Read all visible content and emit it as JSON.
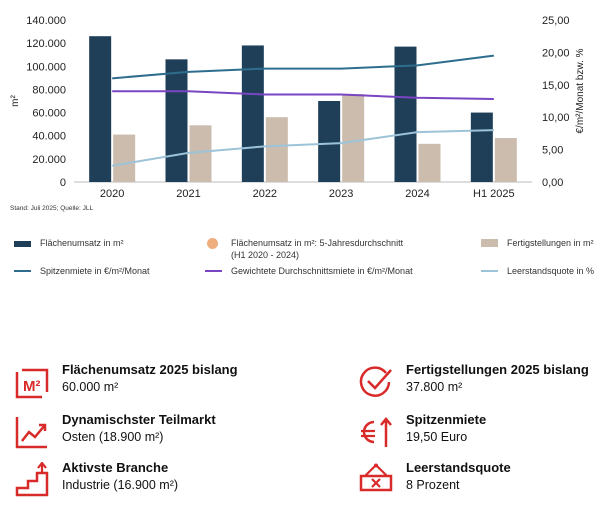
{
  "chart_data": {
    "type": "bar",
    "categories": [
      "2020",
      "2021",
      "2022",
      "2023",
      "2024",
      "H1 2025"
    ],
    "y_left": {
      "label": "m²",
      "ticks": [
        "0",
        "20.000",
        "40.000",
        "60.000",
        "80.000",
        "100.000",
        "120.000",
        "140.000"
      ],
      "range": [
        0,
        140000
      ]
    },
    "y_right": {
      "label": "€/m²/Monat bzw. %",
      "ticks": [
        "0,00",
        "5,00",
        "10,00",
        "15,00",
        "20,00",
        "25,00"
      ],
      "range": [
        0,
        25
      ]
    },
    "bar_series": [
      {
        "name": "Flächenumsatz in m²",
        "color": "#1f3f58",
        "values": [
          126000,
          106000,
          118000,
          70000,
          117000,
          60000
        ]
      },
      {
        "name": "Fertigstellungen in m²",
        "color": "#cbbcae",
        "values": [
          41000,
          49000,
          56000,
          76000,
          33000,
          38000
        ]
      }
    ],
    "line_series": [
      {
        "name": "Spitzenmiete in €/m²/Monat",
        "color": "#2e6d8e",
        "axis": "right",
        "values": [
          16.0,
          17.0,
          17.5,
          17.5,
          18.0,
          19.5
        ]
      },
      {
        "name": "Gewichtete Durchschnittsmiete in €/m²/Monat",
        "color": "#7a45c2",
        "axis": "right",
        "values": [
          14.0,
          14.0,
          13.5,
          13.5,
          13.0,
          12.8
        ]
      },
      {
        "name": "Leerstandsquote in %",
        "color": "#9cc3d8",
        "axis": "right",
        "values": [
          2.5,
          4.5,
          5.5,
          6.0,
          7.7,
          8.0
        ]
      }
    ],
    "marker_legend": {
      "name": "Flächenumsatz in m²: 5-Jahresdurchschnitt",
      "subtext": "(H1 2020 - 2024)",
      "color": "#efae7e"
    },
    "source": "Stand: Juli 2025; Quelle: JLL"
  },
  "kpis": [
    {
      "icon": "m2-icon",
      "title": "Flächenumsatz 2025 bislang",
      "value": "60.000 m²"
    },
    {
      "icon": "checkmark-circle-icon",
      "title": "Fertigstellungen 2025 bislang",
      "value": "37.800 m²"
    },
    {
      "icon": "trend-chart-icon",
      "title": "Dynamischster Teilmarkt",
      "value": "Osten (18.900 m²)"
    },
    {
      "icon": "euro-arrow-icon",
      "title": "Spitzenmiete",
      "value": "19,50 Euro"
    },
    {
      "icon": "stairs-arrow-icon",
      "title": "Aktivste Branche",
      "value": "Industrie (16.900 m²)"
    },
    {
      "icon": "vacancy-sign-icon",
      "title": "Leerstandsquote",
      "value": "8 Prozent"
    }
  ],
  "colors": {
    "accent_red": "#d92a2a"
  }
}
